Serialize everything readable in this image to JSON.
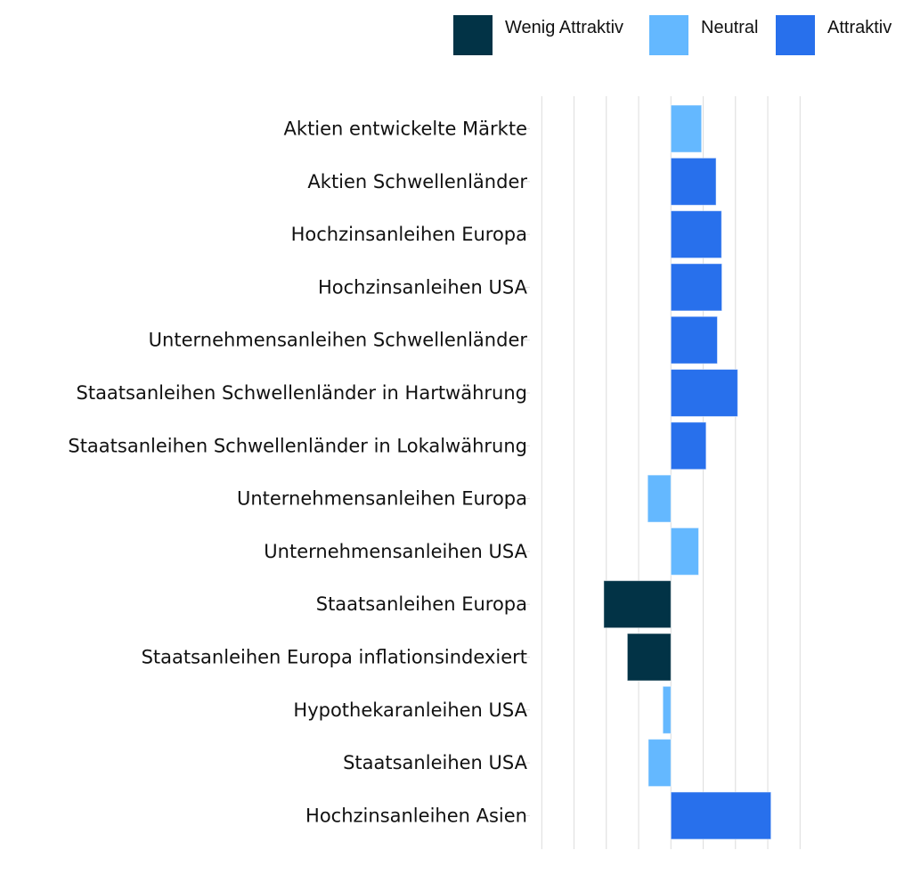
{
  "chart_data": {
    "type": "bar",
    "orientation": "horizontal",
    "title": "",
    "xlabel": "",
    "ylabel": "",
    "xlim": [
      -4,
      4
    ],
    "grid": true,
    "legend_position": "top-right",
    "legend": [
      {
        "name": "Wenig Attraktiv",
        "color": "#023346"
      },
      {
        "name": "Neutral",
        "color": "#64B8FF"
      },
      {
        "name": "Attraktiv",
        "color": "#2870EC"
      }
    ],
    "categories": [
      "Aktien entwickelte Märkte",
      "Aktien Schwellenländer",
      "Hochzinsanleihen Europa",
      "Hochzinsanleihen USA",
      "Unternehmensanleihen Schwellenländer",
      "Staatsanleihen Schwellenländer in Hartwährung",
      "Staatsanleihen Schwellenländer in Lokalwährung",
      "Unternehmensanleihen Europa",
      "Unternehmensanleihen USA",
      "Staatsanleihen Europa",
      "Staatsanleihen Europa inflationsindexiert",
      "Hypothekaranleihen USA",
      "Staatsanleihen USA",
      "Hochzinsanleihen Asien"
    ],
    "values": [
      0.95,
      1.4,
      1.57,
      1.58,
      1.44,
      2.07,
      1.09,
      -0.72,
      0.86,
      -2.08,
      -1.35,
      -0.25,
      -0.7,
      3.1
    ],
    "ratings": [
      "Neutral",
      "Attraktiv",
      "Attraktiv",
      "Attraktiv",
      "Attraktiv",
      "Attraktiv",
      "Attraktiv",
      "Neutral",
      "Neutral",
      "Wenig Attraktiv",
      "Wenig Attraktiv",
      "Neutral",
      "Neutral",
      "Attraktiv"
    ]
  }
}
